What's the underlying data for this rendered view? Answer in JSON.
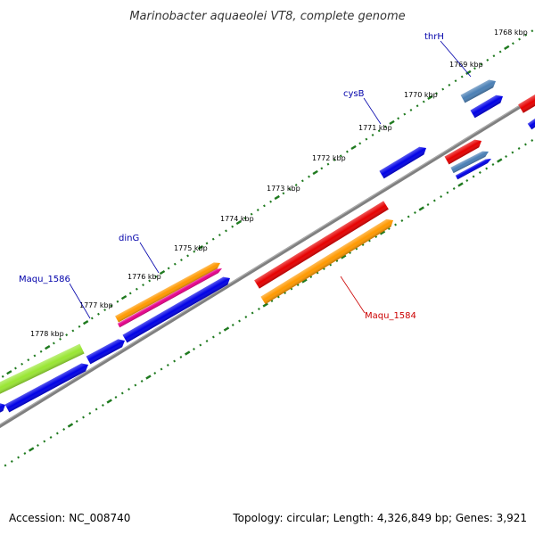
{
  "title": "Marinobacter aquaeolei VT8, complete genome",
  "footer": {
    "accession": "Accession: NC_008740",
    "summary": "Topology: circular; Length: 4,326,849 bp; Genes: 3,921"
  },
  "colors": {
    "backbone": "#808080",
    "tick": "#1f7a1f",
    "blue": "#0000e6",
    "red": "#e60000",
    "orange": "#ff9900",
    "lime": "#99e633",
    "pink": "#e6008a",
    "steel": "#4a7fb5",
    "label_blue": "#0000aa",
    "label_red": "#cc0000"
  },
  "kbp_labels": [
    "1768 kbp",
    "1769 kbp",
    "1770 kbp",
    "1771 kbp",
    "1772 kbp",
    "1773 kbp",
    "1774 kbp",
    "1775 kbp",
    "1776 kbp",
    "1777 kbp",
    "1778 kbp"
  ],
  "gene_labels": [
    {
      "id": "thrh",
      "text": "thrH",
      "color": "label_blue"
    },
    {
      "id": "cysb",
      "text": "cysB",
      "color": "label_blue"
    },
    {
      "id": "ding",
      "text": "dinG",
      "color": "label_blue"
    },
    {
      "id": "maqu1586",
      "text": "Maqu_1586",
      "color": "label_blue"
    },
    {
      "id": "maqu1584",
      "text": "Maqu_1584",
      "color": "label_red"
    }
  ]
}
